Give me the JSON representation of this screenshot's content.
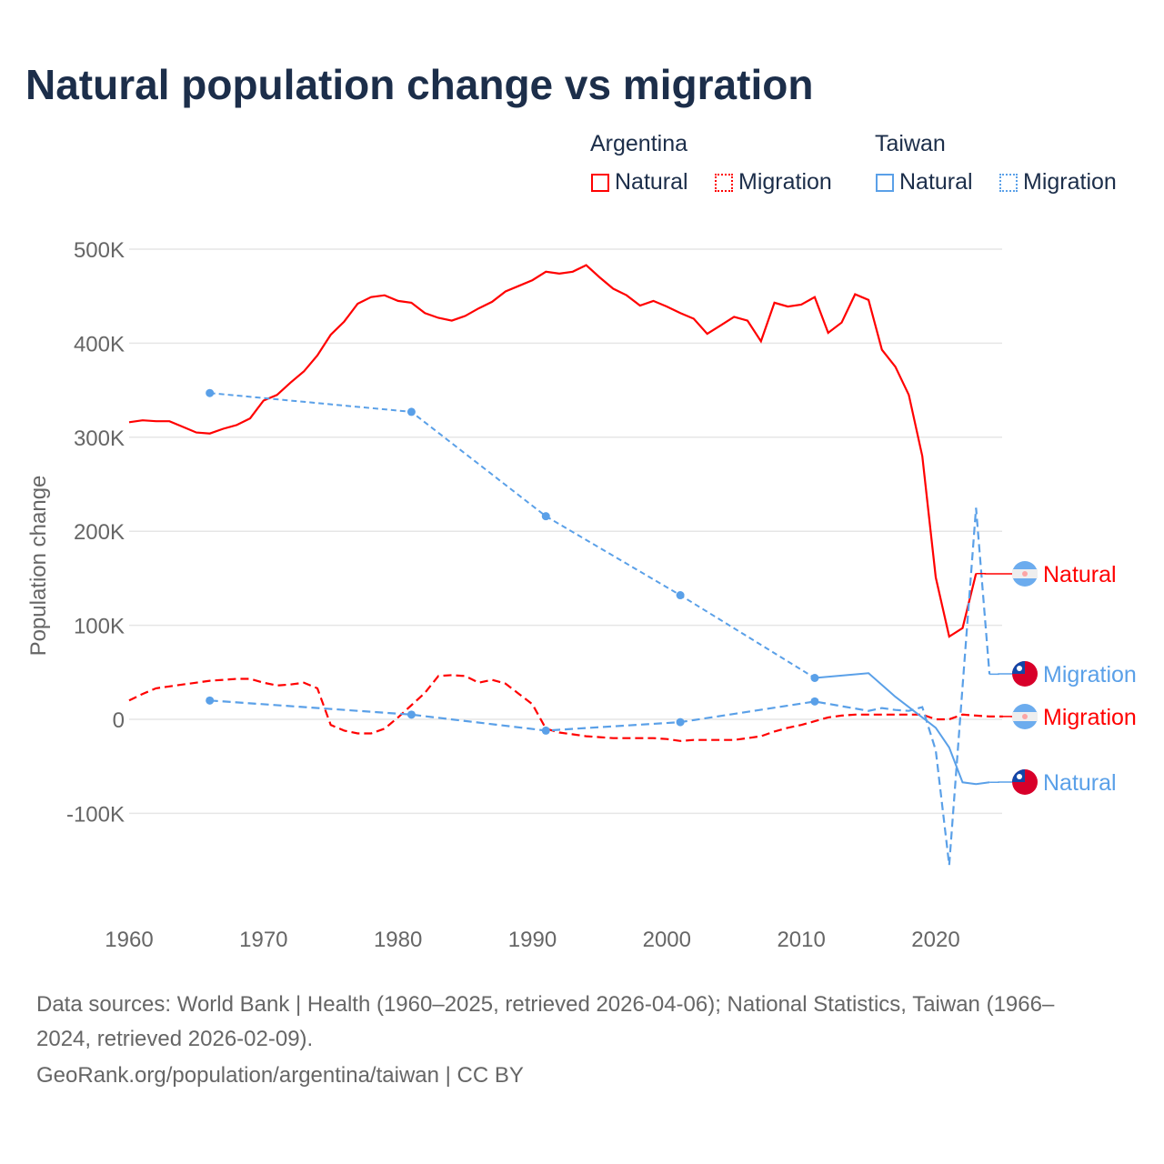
{
  "title": "Natural population change vs migration",
  "legend": {
    "groups": [
      {
        "name": "Argentina",
        "color": "#ff0000",
        "items": [
          "Natural",
          "Migration"
        ]
      },
      {
        "name": "Taiwan",
        "color": "#5aa0e8",
        "items": [
          "Natural",
          "Migration"
        ]
      }
    ]
  },
  "chart_data": {
    "type": "line",
    "title": "Natural population change vs migration",
    "ylabel": "Population change",
    "xlabel": "",
    "xlim": [
      1960,
      2025
    ],
    "ylim": [
      -180000,
      520000
    ],
    "x_ticks": [
      1960,
      1970,
      1980,
      1990,
      2000,
      2010,
      2020
    ],
    "y_ticks": [
      {
        "v": 500000,
        "l": "500K"
      },
      {
        "v": 400000,
        "l": "400K"
      },
      {
        "v": 300000,
        "l": "300K"
      },
      {
        "v": 200000,
        "l": "200K"
      },
      {
        "v": 100000,
        "l": "100K"
      },
      {
        "v": 0,
        "l": "0"
      },
      {
        "v": -100000,
        "l": "-100K"
      }
    ],
    "grid": true,
    "series": [
      {
        "name": "Argentina Natural",
        "label": "Natural",
        "country": "Argentina",
        "color": "#ff0000",
        "style": "solid",
        "x": [
          1960,
          1961,
          1962,
          1963,
          1964,
          1965,
          1966,
          1967,
          1968,
          1969,
          1970,
          1971,
          1972,
          1973,
          1974,
          1975,
          1976,
          1977,
          1978,
          1979,
          1980,
          1981,
          1982,
          1983,
          1984,
          1985,
          1986,
          1987,
          1988,
          1989,
          1990,
          1991,
          1992,
          1993,
          1994,
          1995,
          1996,
          1997,
          1998,
          1999,
          2000,
          2001,
          2002,
          2003,
          2004,
          2005,
          2006,
          2007,
          2008,
          2009,
          2010,
          2011,
          2012,
          2013,
          2014,
          2015,
          2016,
          2017,
          2018,
          2019,
          2020,
          2021,
          2022,
          2023
        ],
        "y": [
          316000,
          318000,
          317000,
          317000,
          311000,
          305000,
          304000,
          309000,
          313000,
          320000,
          339000,
          345000,
          358000,
          370000,
          387000,
          409000,
          423000,
          442000,
          449000,
          451000,
          445000,
          443000,
          432000,
          427000,
          424000,
          429000,
          437000,
          444000,
          455000,
          461000,
          467000,
          476000,
          474000,
          476000,
          483000,
          470000,
          458000,
          451000,
          440000,
          445000,
          439000,
          432000,
          426000,
          410000,
          419000,
          428000,
          424000,
          402000,
          443000,
          439000,
          441000,
          449000,
          411000,
          422000,
          452000,
          446000,
          393000,
          375000,
          345000,
          280000,
          151000,
          88000,
          97000,
          155000
        ]
      },
      {
        "name": "Argentina Migration",
        "label": "Migration",
        "country": "Argentina",
        "color": "#ff0000",
        "style": "dashed",
        "x": [
          1960,
          1961,
          1962,
          1963,
          1964,
          1965,
          1966,
          1967,
          1968,
          1969,
          1970,
          1971,
          1972,
          1973,
          1974,
          1975,
          1976,
          1977,
          1978,
          1979,
          1980,
          1981,
          1982,
          1983,
          1984,
          1985,
          1986,
          1987,
          1988,
          1989,
          1990,
          1991,
          1992,
          1993,
          1994,
          1995,
          1996,
          1997,
          1998,
          1999,
          2000,
          2001,
          2002,
          2003,
          2004,
          2005,
          2006,
          2007,
          2008,
          2009,
          2010,
          2011,
          2012,
          2013,
          2014,
          2015,
          2016,
          2017,
          2018,
          2019,
          2020,
          2021,
          2022,
          2023,
          2024,
          2025
        ],
        "y": [
          20000,
          27000,
          33000,
          35000,
          37000,
          39000,
          41000,
          42000,
          43000,
          43000,
          39000,
          36000,
          37000,
          39000,
          33000,
          -6000,
          -12000,
          -15000,
          -15000,
          -10000,
          2000,
          15000,
          28000,
          46000,
          47000,
          46000,
          39000,
          42000,
          38000,
          27000,
          16000,
          -10000,
          -14000,
          -16000,
          -18000,
          -19000,
          -20000,
          -20000,
          -20000,
          -20000,
          -21000,
          -23000,
          -22000,
          -22000,
          -22000,
          -22000,
          -20000,
          -18000,
          -13000,
          -9000,
          -6000,
          -2000,
          2000,
          4000,
          5000,
          5000,
          5000,
          5000,
          5000,
          5000,
          0,
          0,
          5000,
          4000,
          3000,
          3000
        ]
      },
      {
        "name": "Taiwan Natural",
        "label": "Natural",
        "country": "Taiwan",
        "color": "#5aa0e8",
        "style": "solid",
        "x": [
          1966,
          1981,
          1991,
          2001,
          2011,
          2015,
          2017,
          2019,
          2020,
          2021,
          2022,
          2023,
          2024
        ],
        "y": [
          347000,
          327000,
          216000,
          132000,
          44000,
          49000,
          24000,
          2000,
          -9000,
          -30000,
          -67000,
          -69000,
          -67000
        ]
      },
      {
        "name": "Taiwan Migration",
        "label": "Migration",
        "country": "Taiwan",
        "color": "#5aa0e8",
        "style": "dashed",
        "x": [
          1966,
          1981,
          1991,
          2001,
          2011,
          2015,
          2016,
          2017,
          2018,
          2019,
          2020,
          2021,
          2022,
          2023,
          2024
        ],
        "y": [
          20000,
          5000,
          -12000,
          -3000,
          19000,
          9000,
          12000,
          10000,
          9000,
          13000,
          -33000,
          -155000,
          35000,
          225000,
          48000
        ]
      }
    ]
  },
  "sources": {
    "line1": "Data sources: World Bank | Health (1960–2025, retrieved 2026-04-06); National Statistics, Taiwan (1966–",
    "line2": "2024, retrieved 2026-02-09).",
    "line3": "GeoRank.org/population/argentina/taiwan | CC BY"
  }
}
